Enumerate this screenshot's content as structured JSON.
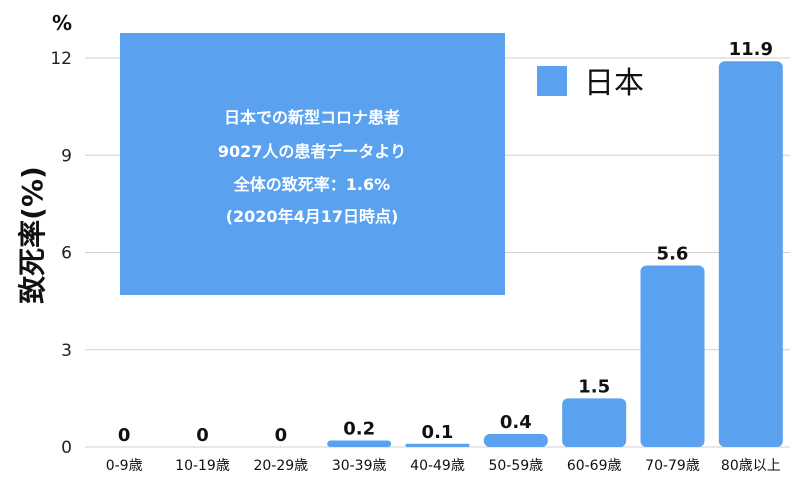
{
  "chart_data": {
    "type": "bar",
    "categories": [
      "0-9歳",
      "10-19歳",
      "20-29歳",
      "30-39歳",
      "40-49歳",
      "50-59歳",
      "60-69歳",
      "70-79歳",
      "80歳以上"
    ],
    "series": [
      {
        "name": "日本",
        "values": [
          0,
          0,
          0,
          0.2,
          0.1,
          0.4,
          1.5,
          5.6,
          11.9
        ]
      }
    ],
    "data_labels": [
      "0",
      "0",
      "0",
      "0.2",
      "0.1",
      "0.4",
      "1.5",
      "5.6",
      "11.9"
    ],
    "ylabel": "致死率(%)",
    "yunit": "%",
    "ylim": [
      0,
      12
    ],
    "yticks": [
      0,
      3,
      6,
      9,
      12
    ],
    "grid": true,
    "legend": "top-right",
    "annotation": {
      "lines": [
        "日本での新型コロナ患者",
        "9027人の患者データより",
        "全体の致死率：1.6%",
        "(2020年4月17日時点)"
      ]
    },
    "colors": {
      "bar": "#5aa2f0",
      "annotation_bg": "#5aa2f0",
      "grid": "#d0d0d0"
    }
  }
}
